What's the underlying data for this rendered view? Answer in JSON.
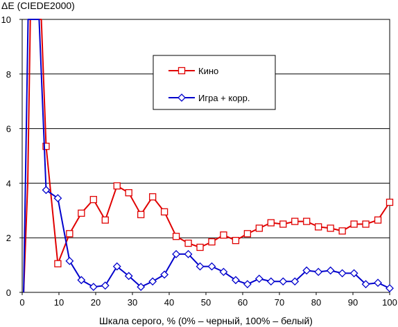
{
  "chart_data": {
    "type": "line",
    "ylabel": "ΔE (CIEDE2000)",
    "xlabel": "Шкала серого, % (0% – черный, 100% – белый)",
    "xlim": [
      0,
      100
    ],
    "ylim": [
      0,
      10
    ],
    "x_ticks": [
      0,
      10,
      20,
      30,
      40,
      50,
      60,
      70,
      80,
      90,
      100
    ],
    "y_ticks": [
      0,
      2,
      4,
      6,
      8,
      10
    ],
    "grid": "horizontal",
    "legend_position": "upper-center",
    "series": [
      {
        "name": "Кино",
        "color": "#e00000",
        "marker": "square",
        "x": [
          6.5,
          9.7,
          12.9,
          16.1,
          19.4,
          22.6,
          25.8,
          29.0,
          32.3,
          35.5,
          38.7,
          41.9,
          45.2,
          48.4,
          51.6,
          54.8,
          58.1,
          61.3,
          64.5,
          67.7,
          71.0,
          74.2,
          77.4,
          80.6,
          83.9,
          87.1,
          90.3,
          93.5,
          96.8,
          100
        ],
        "y": [
          5.35,
          1.05,
          2.15,
          2.9,
          3.4,
          2.65,
          3.9,
          3.65,
          2.85,
          3.5,
          2.95,
          2.05,
          1.8,
          1.65,
          1.85,
          2.1,
          1.9,
          2.15,
          2.35,
          2.55,
          2.5,
          2.6,
          2.6,
          2.4,
          2.35,
          2.25,
          2.5,
          2.5,
          2.65,
          3.3
        ]
      },
      {
        "name": "Игра + корр.",
        "color": "#0000cc",
        "marker": "diamond",
        "x": [
          6.5,
          9.7,
          12.9,
          16.1,
          19.4,
          22.6,
          25.8,
          29.0,
          32.3,
          35.5,
          38.7,
          41.9,
          45.2,
          48.4,
          51.6,
          54.8,
          58.1,
          61.3,
          64.5,
          67.7,
          71.0,
          74.2,
          77.4,
          80.6,
          83.9,
          87.1,
          90.3,
          93.5,
          96.8,
          100
        ],
        "y": [
          3.75,
          3.45,
          1.15,
          0.45,
          0.2,
          0.25,
          0.95,
          0.6,
          0.2,
          0.4,
          0.65,
          1.4,
          1.4,
          0.95,
          0.95,
          0.75,
          0.45,
          0.3,
          0.5,
          0.4,
          0.4,
          0.4,
          0.8,
          0.75,
          0.8,
          0.7,
          0.7,
          0.3,
          0.35,
          0.15
        ]
      }
    ]
  }
}
